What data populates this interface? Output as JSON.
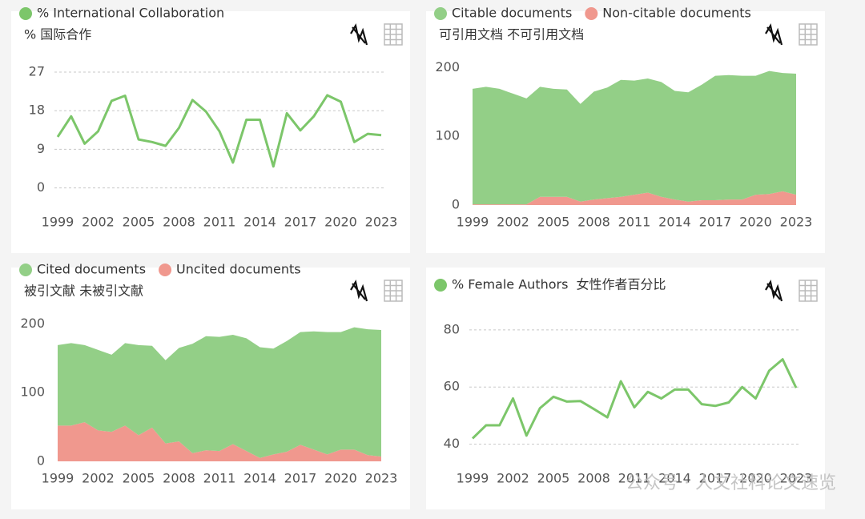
{
  "chart_data": [
    {
      "type": "line",
      "subtitle": "% 国际合作",
      "x": [
        1999,
        2000,
        2001,
        2002,
        2003,
        2004,
        2005,
        2006,
        2007,
        2008,
        2009,
        2010,
        2011,
        2012,
        2013,
        2014,
        2015,
        2016,
        2017,
        2018,
        2019,
        2020,
        2021,
        2022,
        2023
      ],
      "xlim": [
        1999,
        2023
      ],
      "xticks": [
        1999,
        2002,
        2005,
        2008,
        2011,
        2014,
        2017,
        2020,
        2023
      ],
      "ylim": [
        -4,
        30
      ],
      "yticks": [
        0,
        9,
        18,
        27
      ],
      "grid": true,
      "series": [
        {
          "name": "% International Collaboration",
          "color": "#7cc66a",
          "values": [
            11.9,
            16.7,
            10.3,
            13.2,
            20.3,
            21.5,
            11.3,
            10.7,
            9.8,
            14,
            20.5,
            17.8,
            13.2,
            5.9,
            15.9,
            15.9,
            5.0,
            17.4,
            13.4,
            16.7,
            21.6,
            20.1,
            10.7,
            12.6,
            12.3
          ]
        }
      ]
    },
    {
      "type": "area",
      "subtitle": "可引用文档 不可引用文档",
      "x": [
        1999,
        2000,
        2001,
        2002,
        2003,
        2004,
        2005,
        2006,
        2007,
        2008,
        2009,
        2010,
        2011,
        2012,
        2013,
        2014,
        2015,
        2016,
        2017,
        2018,
        2019,
        2020,
        2021,
        2022,
        2023
      ],
      "xlim": [
        1999,
        2023
      ],
      "xticks": [
        1999,
        2002,
        2005,
        2008,
        2011,
        2014,
        2017,
        2020,
        2023
      ],
      "ylim": [
        0,
        212
      ],
      "yticks": [
        0,
        100,
        200
      ],
      "grid": false,
      "stacked": true,
      "series": [
        {
          "name": "Citable documents",
          "color": "#93cf87",
          "values": [
            168,
            171,
            168,
            161,
            154,
            160,
            157,
            156,
            142,
            157,
            161,
            170,
            166,
            166,
            167,
            158,
            159,
            168,
            181,
            181,
            180,
            173,
            179,
            172,
            176
          ]
        },
        {
          "name": "Non-citable documents",
          "color": "#f0988e",
          "values": [
            1,
            1,
            1,
            1,
            1,
            12,
            12,
            12,
            5,
            8,
            10,
            12,
            15,
            18,
            12,
            8,
            5,
            7,
            7,
            8,
            8,
            15,
            16,
            20,
            15
          ]
        }
      ]
    },
    {
      "type": "area",
      "subtitle": "被引文献 未被引文献",
      "x": [
        1999,
        2000,
        2001,
        2002,
        2003,
        2004,
        2005,
        2006,
        2007,
        2008,
        2009,
        2010,
        2011,
        2012,
        2013,
        2014,
        2015,
        2016,
        2017,
        2018,
        2019,
        2020,
        2021,
        2022,
        2023
      ],
      "xlim": [
        1999,
        2023
      ],
      "xticks": [
        1999,
        2002,
        2005,
        2008,
        2011,
        2014,
        2017,
        2020,
        2023
      ],
      "ylim": [
        0,
        212
      ],
      "yticks": [
        0,
        100,
        200
      ],
      "grid": false,
      "stacked": true,
      "series": [
        {
          "name": "Cited documents",
          "color": "#93cf87",
          "values": [
            117,
            120,
            112,
            117,
            112,
            120,
            131,
            119,
            121,
            136,
            159,
            166,
            166,
            159,
            164,
            161,
            154,
            161,
            164,
            172,
            178,
            171,
            178,
            183,
            184
          ]
        },
        {
          "name": "Uncited documents",
          "color": "#f0988e",
          "values": [
            52,
            52,
            57,
            45,
            43,
            52,
            38,
            49,
            26,
            29,
            12,
            16,
            15,
            25,
            15,
            5,
            10,
            14,
            24,
            17,
            10,
            17,
            17,
            9,
            7
          ]
        }
      ]
    },
    {
      "type": "line",
      "subtitle": "女性作者百分比",
      "x": [
        1999,
        2000,
        2001,
        2002,
        2003,
        2004,
        2005,
        2006,
        2007,
        2008,
        2009,
        2010,
        2011,
        2012,
        2013,
        2014,
        2015,
        2016,
        2017,
        2018,
        2019,
        2020,
        2021,
        2022,
        2023
      ],
      "xlim": [
        1999,
        2023
      ],
      "xticks": [
        1999,
        2002,
        2005,
        2008,
        2011,
        2014,
        2017,
        2020,
        2023
      ],
      "ylim": [
        34,
        85
      ],
      "yticks": [
        40,
        60,
        80
      ],
      "grid": true,
      "series": [
        {
          "name": "% Female Authors",
          "color": "#7cc66a",
          "values": [
            42,
            46.6,
            46.6,
            56,
            43,
            52.6,
            56.6,
            54.9,
            55.1,
            52.3,
            49.4,
            62,
            52.9,
            58.3,
            56,
            59.1,
            59.1,
            54,
            53.4,
            54.6,
            60,
            56,
            65.7,
            69.7,
            59.7
          ]
        }
      ]
    }
  ],
  "watermark": "公众号 · 人文社科论文速览"
}
